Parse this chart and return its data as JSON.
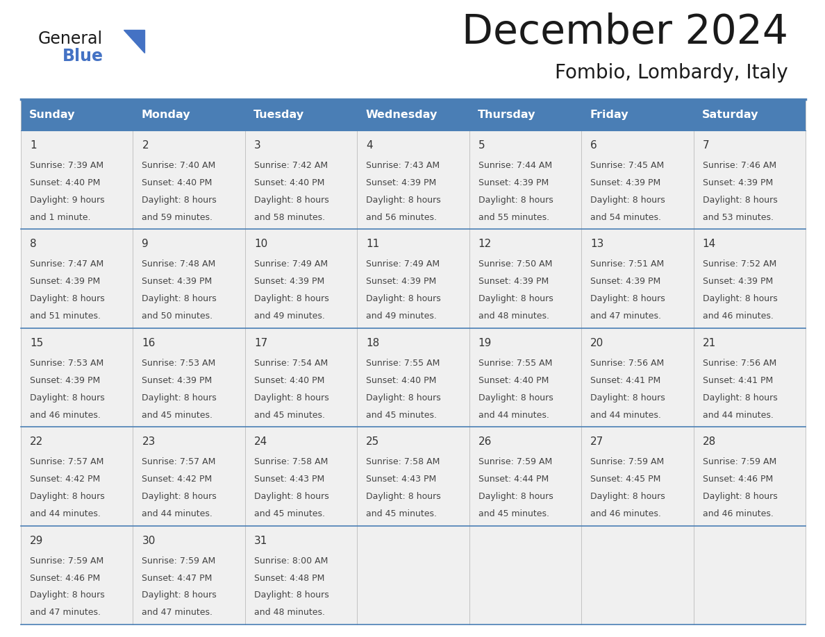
{
  "title": "December 2024",
  "subtitle": "Fombio, Lombardy, Italy",
  "header_color": "#4a7eb5",
  "header_text_color": "#FFFFFF",
  "cell_bg_color": "#f0f0f0",
  "border_color": "#4a7eb5",
  "grid_color": "#bbbbbb",
  "day_headers": [
    "Sunday",
    "Monday",
    "Tuesday",
    "Wednesday",
    "Thursday",
    "Friday",
    "Saturday"
  ],
  "weeks": [
    [
      {
        "day": 1,
        "sunrise": "7:39 AM",
        "sunset": "4:40 PM",
        "daylight_h": "9 hours",
        "daylight_m": "and 1 minute."
      },
      {
        "day": 2,
        "sunrise": "7:40 AM",
        "sunset": "4:40 PM",
        "daylight_h": "8 hours",
        "daylight_m": "and 59 minutes."
      },
      {
        "day": 3,
        "sunrise": "7:42 AM",
        "sunset": "4:40 PM",
        "daylight_h": "8 hours",
        "daylight_m": "and 58 minutes."
      },
      {
        "day": 4,
        "sunrise": "7:43 AM",
        "sunset": "4:39 PM",
        "daylight_h": "8 hours",
        "daylight_m": "and 56 minutes."
      },
      {
        "day": 5,
        "sunrise": "7:44 AM",
        "sunset": "4:39 PM",
        "daylight_h": "8 hours",
        "daylight_m": "and 55 minutes."
      },
      {
        "day": 6,
        "sunrise": "7:45 AM",
        "sunset": "4:39 PM",
        "daylight_h": "8 hours",
        "daylight_m": "and 54 minutes."
      },
      {
        "day": 7,
        "sunrise": "7:46 AM",
        "sunset": "4:39 PM",
        "daylight_h": "8 hours",
        "daylight_m": "and 53 minutes."
      }
    ],
    [
      {
        "day": 8,
        "sunrise": "7:47 AM",
        "sunset": "4:39 PM",
        "daylight_h": "8 hours",
        "daylight_m": "and 51 minutes."
      },
      {
        "day": 9,
        "sunrise": "7:48 AM",
        "sunset": "4:39 PM",
        "daylight_h": "8 hours",
        "daylight_m": "and 50 minutes."
      },
      {
        "day": 10,
        "sunrise": "7:49 AM",
        "sunset": "4:39 PM",
        "daylight_h": "8 hours",
        "daylight_m": "and 49 minutes."
      },
      {
        "day": 11,
        "sunrise": "7:49 AM",
        "sunset": "4:39 PM",
        "daylight_h": "8 hours",
        "daylight_m": "and 49 minutes."
      },
      {
        "day": 12,
        "sunrise": "7:50 AM",
        "sunset": "4:39 PM",
        "daylight_h": "8 hours",
        "daylight_m": "and 48 minutes."
      },
      {
        "day": 13,
        "sunrise": "7:51 AM",
        "sunset": "4:39 PM",
        "daylight_h": "8 hours",
        "daylight_m": "and 47 minutes."
      },
      {
        "day": 14,
        "sunrise": "7:52 AM",
        "sunset": "4:39 PM",
        "daylight_h": "8 hours",
        "daylight_m": "and 46 minutes."
      }
    ],
    [
      {
        "day": 15,
        "sunrise": "7:53 AM",
        "sunset": "4:39 PM",
        "daylight_h": "8 hours",
        "daylight_m": "and 46 minutes."
      },
      {
        "day": 16,
        "sunrise": "7:53 AM",
        "sunset": "4:39 PM",
        "daylight_h": "8 hours",
        "daylight_m": "and 45 minutes."
      },
      {
        "day": 17,
        "sunrise": "7:54 AM",
        "sunset": "4:40 PM",
        "daylight_h": "8 hours",
        "daylight_m": "and 45 minutes."
      },
      {
        "day": 18,
        "sunrise": "7:55 AM",
        "sunset": "4:40 PM",
        "daylight_h": "8 hours",
        "daylight_m": "and 45 minutes."
      },
      {
        "day": 19,
        "sunrise": "7:55 AM",
        "sunset": "4:40 PM",
        "daylight_h": "8 hours",
        "daylight_m": "and 44 minutes."
      },
      {
        "day": 20,
        "sunrise": "7:56 AM",
        "sunset": "4:41 PM",
        "daylight_h": "8 hours",
        "daylight_m": "and 44 minutes."
      },
      {
        "day": 21,
        "sunrise": "7:56 AM",
        "sunset": "4:41 PM",
        "daylight_h": "8 hours",
        "daylight_m": "and 44 minutes."
      }
    ],
    [
      {
        "day": 22,
        "sunrise": "7:57 AM",
        "sunset": "4:42 PM",
        "daylight_h": "8 hours",
        "daylight_m": "and 44 minutes."
      },
      {
        "day": 23,
        "sunrise": "7:57 AM",
        "sunset": "4:42 PM",
        "daylight_h": "8 hours",
        "daylight_m": "and 44 minutes."
      },
      {
        "day": 24,
        "sunrise": "7:58 AM",
        "sunset": "4:43 PM",
        "daylight_h": "8 hours",
        "daylight_m": "and 45 minutes."
      },
      {
        "day": 25,
        "sunrise": "7:58 AM",
        "sunset": "4:43 PM",
        "daylight_h": "8 hours",
        "daylight_m": "and 45 minutes."
      },
      {
        "day": 26,
        "sunrise": "7:59 AM",
        "sunset": "4:44 PM",
        "daylight_h": "8 hours",
        "daylight_m": "and 45 minutes."
      },
      {
        "day": 27,
        "sunrise": "7:59 AM",
        "sunset": "4:45 PM",
        "daylight_h": "8 hours",
        "daylight_m": "and 46 minutes."
      },
      {
        "day": 28,
        "sunrise": "7:59 AM",
        "sunset": "4:46 PM",
        "daylight_h": "8 hours",
        "daylight_m": "and 46 minutes."
      }
    ],
    [
      {
        "day": 29,
        "sunrise": "7:59 AM",
        "sunset": "4:46 PM",
        "daylight_h": "8 hours",
        "daylight_m": "and 47 minutes."
      },
      {
        "day": 30,
        "sunrise": "7:59 AM",
        "sunset": "4:47 PM",
        "daylight_h": "8 hours",
        "daylight_m": "and 47 minutes."
      },
      {
        "day": 31,
        "sunrise": "8:00 AM",
        "sunset": "4:48 PM",
        "daylight_h": "8 hours",
        "daylight_m": "and 48 minutes."
      },
      null,
      null,
      null,
      null
    ]
  ]
}
